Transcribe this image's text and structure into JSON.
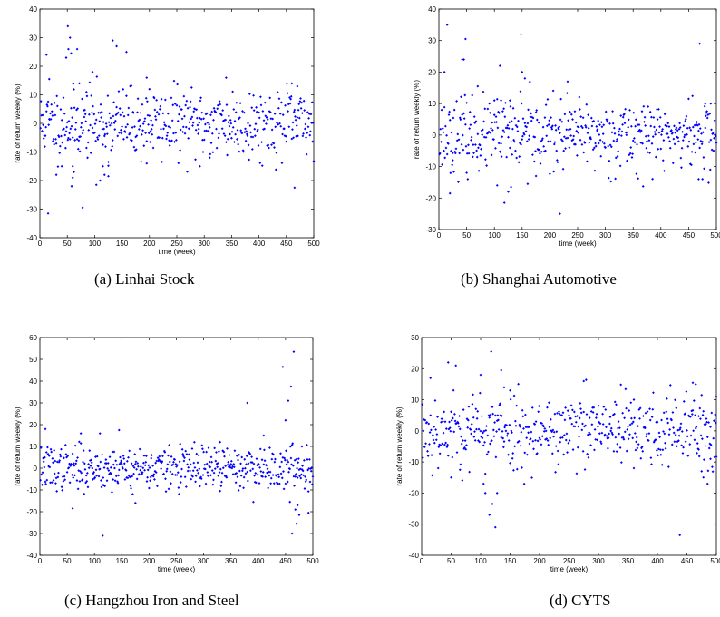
{
  "chart_data": [
    {
      "type": "scatter",
      "caption": "(a) Linhai Stock",
      "xlabel": "time (week)",
      "ylabel": "rate of return weekly (%)",
      "xlim": [
        0,
        500
      ],
      "ylim": [
        -40,
        40
      ],
      "xticks": [
        0,
        50,
        100,
        150,
        200,
        250,
        300,
        350,
        400,
        450,
        500
      ],
      "yticks": [
        -40,
        -30,
        -20,
        -10,
        0,
        10,
        20,
        30,
        40
      ],
      "color": "#0000ff",
      "grid": false,
      "seed": 11,
      "base_sd": 6,
      "highlights": [
        [
          15,
          -31.5
        ],
        [
          12,
          24
        ],
        [
          17,
          15.5
        ],
        [
          48,
          23
        ],
        [
          51,
          34
        ],
        [
          55,
          30
        ],
        [
          52,
          26
        ],
        [
          57,
          24.5
        ],
        [
          58,
          -22
        ],
        [
          60,
          -19
        ],
        [
          62,
          -17
        ],
        [
          60,
          -15
        ],
        [
          68,
          26
        ],
        [
          72,
          14
        ],
        [
          78,
          -29.5
        ],
        [
          85,
          11
        ],
        [
          96,
          18
        ],
        [
          103,
          -21.5
        ],
        [
          110,
          -20
        ],
        [
          118,
          -18
        ],
        [
          125,
          -18.5
        ],
        [
          133,
          29
        ],
        [
          140,
          27
        ],
        [
          158,
          25
        ],
        [
          195,
          16
        ],
        [
          200,
          12
        ],
        [
          340,
          16
        ],
        [
          465,
          -22.5
        ],
        [
          460,
          14
        ],
        [
          470,
          13
        ],
        [
          30,
          -18
        ],
        [
          40,
          -15
        ],
        [
          125,
          -13.5
        ],
        [
          115,
          -15
        ],
        [
          195,
          -14
        ],
        [
          292,
          -15
        ],
        [
          310,
          -12
        ]
      ]
    },
    {
      "type": "scatter",
      "caption": "(b) Shanghai Automotive",
      "xlabel": "time (week)",
      "ylabel": "rate of return weekly (%)",
      "xlim": [
        0,
        500
      ],
      "ylim": [
        -30,
        40
      ],
      "xticks": [
        0,
        50,
        100,
        150,
        200,
        250,
        300,
        350,
        400,
        450,
        500
      ],
      "yticks": [
        -30,
        -20,
        -10,
        0,
        10,
        20,
        30,
        40
      ],
      "color": "#0000ff",
      "grid": false,
      "seed": 23,
      "base_sd": 5.5,
      "highlights": [
        [
          15,
          35
        ],
        [
          10,
          20
        ],
        [
          20,
          -18.5
        ],
        [
          42,
          24
        ],
        [
          48,
          30.5
        ],
        [
          45,
          24
        ],
        [
          50,
          -12
        ],
        [
          70,
          15.5
        ],
        [
          110,
          22
        ],
        [
          118,
          -21.5
        ],
        [
          105,
          -16
        ],
        [
          125,
          -18
        ],
        [
          130,
          -16.5
        ],
        [
          148,
          32
        ],
        [
          150,
          20
        ],
        [
          155,
          18
        ],
        [
          160,
          -15.5
        ],
        [
          175,
          -13
        ],
        [
          218,
          -25
        ],
        [
          232,
          17
        ],
        [
          470,
          29
        ],
        [
          475,
          -14
        ],
        [
          468,
          -14
        ],
        [
          480,
          10
        ],
        [
          490,
          10
        ],
        [
          25,
          -8
        ],
        [
          100,
          11
        ],
        [
          112,
          11
        ],
        [
          128,
          11
        ]
      ]
    },
    {
      "type": "scatter",
      "caption": "(c) Hangzhou Iron and Steel",
      "xlabel": "time (week)",
      "ylabel": "rate of return weekly (%)",
      "xlim": [
        0,
        500
      ],
      "ylim": [
        -40,
        60
      ],
      "xticks": [
        0,
        50,
        100,
        150,
        200,
        250,
        300,
        350,
        400,
        450,
        500
      ],
      "yticks": [
        -40,
        -30,
        -20,
        -10,
        0,
        10,
        20,
        30,
        40,
        50,
        60
      ],
      "color": "#0000ff",
      "grid": false,
      "seed": 37,
      "base_sd": 5,
      "highlights": [
        [
          10,
          18
        ],
        [
          60,
          -18.5
        ],
        [
          75,
          16
        ],
        [
          110,
          16
        ],
        [
          115,
          -31
        ],
        [
          145,
          17.5
        ],
        [
          175,
          -16
        ],
        [
          380,
          30
        ],
        [
          445,
          46.5
        ],
        [
          465,
          53.5
        ],
        [
          460,
          37.5
        ],
        [
          455,
          31
        ],
        [
          462,
          -30
        ],
        [
          458,
          -15.5
        ],
        [
          468,
          -19
        ],
        [
          470,
          -25.5
        ],
        [
          475,
          -21.5
        ],
        [
          472,
          -17
        ],
        [
          492,
          -20.5
        ],
        [
          450,
          22
        ],
        [
          480,
          10
        ],
        [
          330,
          12
        ],
        [
          410,
          15
        ]
      ]
    },
    {
      "type": "scatter",
      "caption": "(d) CYTS",
      "xlabel": "time (week)",
      "ylabel": "rate of return weekly (%)",
      "xlim": [
        0,
        500
      ],
      "ylim": [
        -40,
        30
      ],
      "xticks": [
        0,
        50,
        100,
        150,
        200,
        250,
        300,
        350,
        400,
        450,
        500
      ],
      "yticks": [
        -40,
        -30,
        -20,
        -10,
        0,
        10,
        20,
        30
      ],
      "color": "#0000ff",
      "grid": false,
      "seed": 53,
      "base_sd": 6,
      "highlights": [
        [
          15,
          17
        ],
        [
          45,
          22
        ],
        [
          58,
          21
        ],
        [
          50,
          -15
        ],
        [
          65,
          -12.5
        ],
        [
          100,
          18
        ],
        [
          105,
          -17
        ],
        [
          108,
          -20
        ],
        [
          115,
          -27
        ],
        [
          118,
          25.5
        ],
        [
          125,
          -31
        ],
        [
          128,
          -20
        ],
        [
          135,
          19.5
        ],
        [
          140,
          14
        ],
        [
          150,
          13
        ],
        [
          120,
          -23.5
        ],
        [
          275,
          16
        ],
        [
          360,
          -12
        ],
        [
          438,
          -33.5
        ],
        [
          460,
          15.5
        ],
        [
          465,
          15
        ],
        [
          475,
          -13
        ],
        [
          478,
          -15
        ],
        [
          485,
          -17
        ],
        [
          470,
          -6
        ],
        [
          490,
          -9
        ],
        [
          500,
          11
        ]
      ]
    }
  ]
}
